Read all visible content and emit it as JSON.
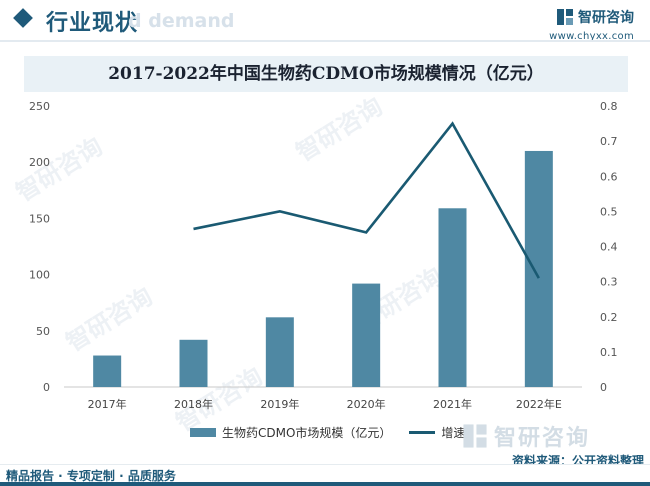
{
  "header": {
    "title": "行业现状",
    "ghost_text": "d demand",
    "brand_name": "智研咨询",
    "brand_url": "www.chyxx.com"
  },
  "footer": {
    "text": "精品报告 · 专项定制 · 品质服务"
  },
  "source": "资料来源：公开资料整理",
  "watermark_text": "智研咨询",
  "colors": {
    "accent": "#1f5a7a",
    "bar": "#4f88a3",
    "line": "#1a5a72",
    "title_band": "#e9f1f6"
  },
  "chart_data": {
    "type": "bar+line",
    "title": "2017-2022年中国生物药CDMO市场规模情况（亿元）",
    "categories": [
      "2017年",
      "2018年",
      "2019年",
      "2020年",
      "2021年",
      "2022年E"
    ],
    "series": [
      {
        "name": "生物药CDMO市场规模（亿元）",
        "type": "bar",
        "axis": "left",
        "values": [
          28,
          42,
          62,
          92,
          159,
          210
        ]
      },
      {
        "name": "增速",
        "type": "line",
        "axis": "right",
        "values": [
          null,
          0.45,
          0.5,
          0.44,
          0.75,
          0.31
        ]
      }
    ],
    "y_left": {
      "min": 0,
      "max": 250,
      "ticks": [
        0,
        50,
        100,
        150,
        200,
        250
      ]
    },
    "y_right": {
      "min": 0,
      "max": 0.8,
      "ticks": [
        "0",
        "0.1",
        "0.2",
        "0.3",
        "0.4",
        "0.5",
        "0.6",
        "0.7",
        "0.8"
      ]
    },
    "legend_placement": "bottom-center",
    "grid": false
  }
}
